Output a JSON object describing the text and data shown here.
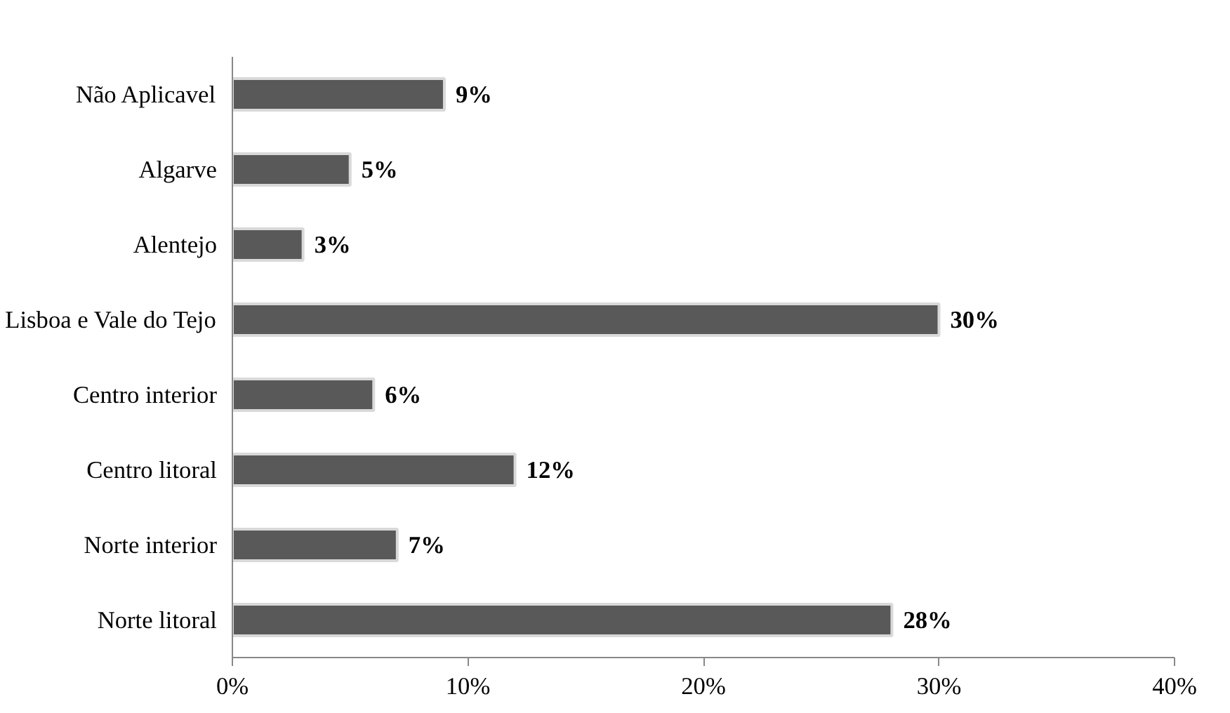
{
  "chart_data": {
    "type": "bar",
    "orientation": "horizontal",
    "categories": [
      "Não Aplicavel",
      "Algarve",
      "Alentejo",
      "Lisboa e Vale do Tejo",
      "Centro interior",
      "Centro litoral",
      "Norte interior",
      "Norte litoral"
    ],
    "values": [
      9,
      5,
      3,
      30,
      6,
      12,
      7,
      28
    ],
    "value_labels": [
      "9%",
      "5%",
      "3%",
      "30%",
      "6%",
      "12%",
      "7%",
      "28%"
    ],
    "color": "#595959",
    "xlim": [
      0,
      40
    ],
    "xticks": [
      {
        "value": 0,
        "label": "0%"
      },
      {
        "value": 10,
        "label": "10%"
      },
      {
        "value": 20,
        "label": "20%"
      },
      {
        "value": 30,
        "label": "30%"
      },
      {
        "value": 40,
        "label": "40%"
      }
    ],
    "grid": false
  }
}
